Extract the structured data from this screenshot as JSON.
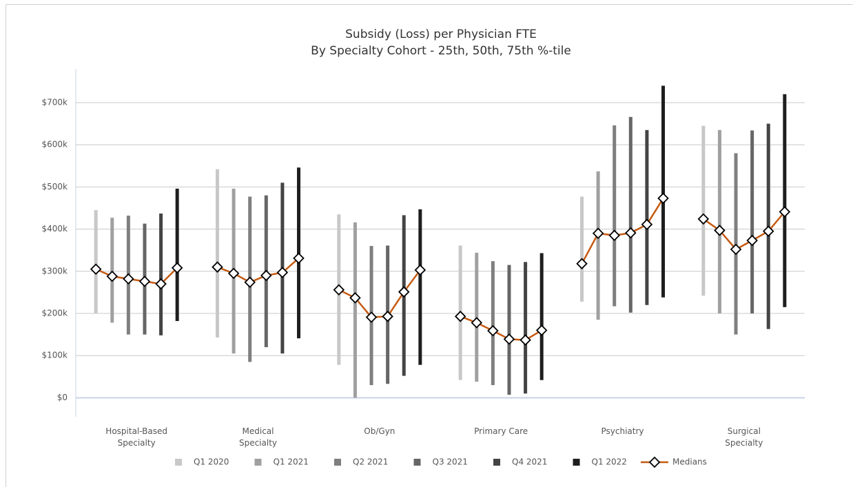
{
  "chart_data": {
    "type": "range-bar",
    "title": "Subsidy (Loss) per Physician FTE",
    "subtitle": "By Specialty Cohort - 25th, 50th, 75th %-tile",
    "categories": [
      "Hospital-Based Specialty",
      "Medical Specialty",
      "Ob/Gyn",
      "Primary Care",
      "Psychiatry",
      "Surgical Specialty"
    ],
    "series": [
      {
        "name": "Q1 2020",
        "color": "#c8c8c8",
        "low": [
          200000,
          143000,
          78000,
          42000,
          228000,
          242000
        ],
        "high": [
          445000,
          542000,
          435000,
          361000,
          477000,
          645000
        ],
        "median": [
          305000,
          310000,
          256000,
          193000,
          318000,
          424000
        ]
      },
      {
        "name": "Q1 2021",
        "color": "#a0a0a0",
        "low": [
          178000,
          105000,
          0,
          38000,
          185000,
          200000
        ],
        "high": [
          427000,
          496000,
          416000,
          344000,
          537000,
          635000
        ],
        "median": [
          288000,
          295000,
          237000,
          178000,
          390000,
          397000
        ]
      },
      {
        "name": "Q2 2021",
        "color": "#7f7f7f",
        "low": [
          150000,
          85000,
          30000,
          30000,
          217000,
          150000
        ],
        "high": [
          432000,
          477000,
          360000,
          324000,
          646000,
          580000
        ],
        "median": [
          282000,
          274000,
          191000,
          159000,
          385000,
          352000
        ]
      },
      {
        "name": "Q3 2021",
        "color": "#666666",
        "low": [
          150000,
          120000,
          33000,
          7000,
          202000,
          200000
        ],
        "high": [
          413000,
          480000,
          361000,
          315000,
          666000,
          634000
        ],
        "median": [
          276000,
          290000,
          193000,
          139000,
          391000,
          373000
        ]
      },
      {
        "name": "Q4 2021",
        "color": "#444444",
        "low": [
          148000,
          105000,
          52000,
          10000,
          220000,
          163000
        ],
        "high": [
          437000,
          510000,
          433000,
          322000,
          635000,
          650000
        ],
        "median": [
          270000,
          297000,
          251000,
          137000,
          411000,
          395000
        ]
      },
      {
        "name": "Q1 2022",
        "color": "#1e1e1e",
        "low": [
          182000,
          141000,
          78000,
          42000,
          238000,
          215000
        ],
        "high": [
          496000,
          546000,
          447000,
          343000,
          740000,
          720000
        ],
        "median": [
          308000,
          331000,
          303000,
          160000,
          473000,
          441000
        ]
      }
    ],
    "medians": {
      "name": "Medians",
      "color": "#c55a11"
    },
    "ylim": [
      -45000,
      780000
    ],
    "yticks": [
      {
        "value": 0,
        "label": "$0"
      },
      {
        "value": 100000,
        "label": "$100k"
      },
      {
        "value": 200000,
        "label": "$200k"
      },
      {
        "value": 300000,
        "label": "$300k"
      },
      {
        "value": 400000,
        "label": "$400k"
      },
      {
        "value": 500000,
        "label": "$500k"
      },
      {
        "value": 600000,
        "label": "$600k"
      },
      {
        "value": 700000,
        "label": "$700k"
      }
    ],
    "grid": true
  }
}
